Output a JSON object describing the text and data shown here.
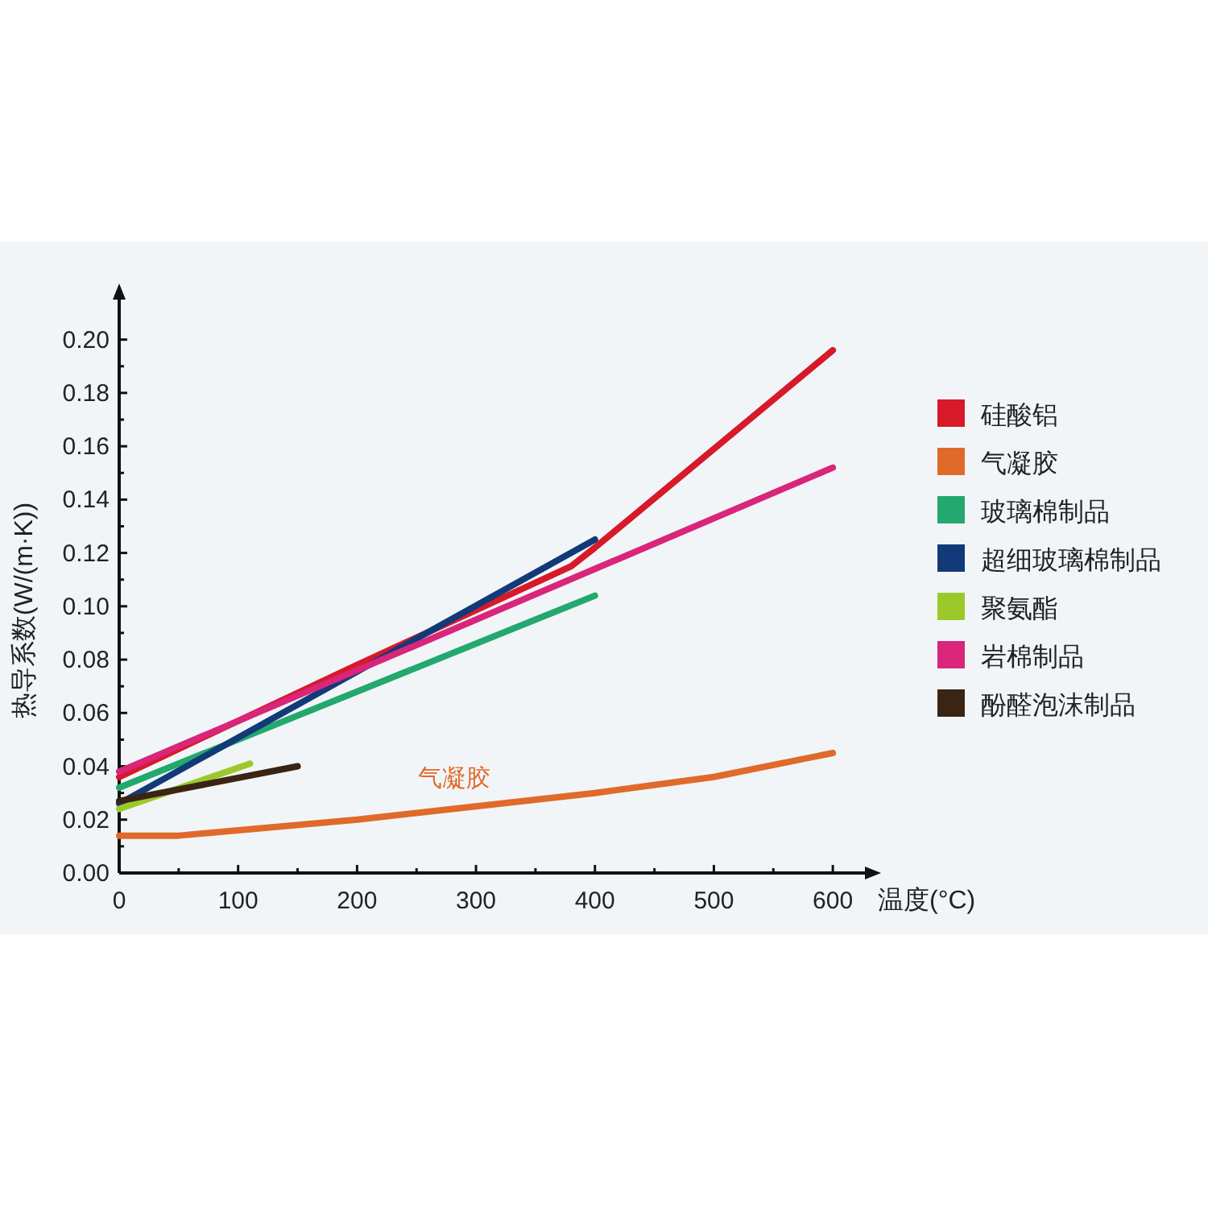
{
  "chart_data": {
    "type": "line",
    "xlabel": "温度(°C)",
    "ylabel": "热导系数(W/(m·K))",
    "xlim": [
      0,
      627
    ],
    "ylim": [
      0,
      0.215
    ],
    "xticks": [
      0,
      {
        "value": 50,
        "label": null
      },
      100,
      {
        "value": 150,
        "label": null
      },
      200,
      {
        "value": 250,
        "label": null
      },
      300,
      {
        "value": 350,
        "label": null
      },
      400,
      {
        "value": 450,
        "label": null
      },
      500,
      {
        "value": 550,
        "label": null
      },
      600
    ],
    "yticks": [
      {
        "value": 0,
        "label": "0.00"
      },
      {
        "value": 0.01,
        "label": null
      },
      {
        "value": 0.02,
        "label": "0.02"
      },
      {
        "value": 0.03,
        "label": null
      },
      {
        "value": 0.04,
        "label": "0.04"
      },
      {
        "value": 0.05,
        "label": null
      },
      {
        "value": 0.06,
        "label": "0.06"
      },
      {
        "value": 0.07,
        "label": null
      },
      {
        "value": 0.08,
        "label": "0.08"
      },
      {
        "value": 0.09,
        "label": null
      },
      {
        "value": 0.1,
        "label": "0.10"
      },
      {
        "value": 0.11,
        "label": null
      },
      {
        "value": 0.12,
        "label": "0.12"
      },
      {
        "value": 0.13,
        "label": null
      },
      {
        "value": 0.14,
        "label": "0.14"
      },
      {
        "value": 0.15,
        "label": null
      },
      {
        "value": 0.16,
        "label": "0.16"
      },
      {
        "value": 0.17,
        "label": null
      },
      {
        "value": 0.18,
        "label": "0.18"
      },
      {
        "value": 0.19,
        "label": null
      },
      {
        "value": 0.2,
        "label": "0.20"
      }
    ],
    "grid": false,
    "legend": "right",
    "marker": "none",
    "line_style": "solid",
    "annotations": [
      "气凝胶"
    ],
    "series": [
      {
        "name": "硅酸铝",
        "color": "#d7192a",
        "x": [
          0,
          200,
          380,
          400,
          600
        ],
        "values": [
          0.036,
          0.078,
          0.115,
          0.122,
          0.196
        ]
      },
      {
        "name": "气凝胶",
        "color": "#e06a2a",
        "x": [
          0,
          50,
          100,
          200,
          300,
          400,
          500,
          600
        ],
        "values": [
          0.014,
          0.014,
          0.016,
          0.02,
          0.025,
          0.03,
          0.036,
          0.045
        ]
      },
      {
        "name": "玻璃棉制品",
        "color": "#23a86e",
        "x": [
          0,
          400
        ],
        "values": [
          0.032,
          0.104
        ]
      },
      {
        "name": "超细玻璃棉制品",
        "color": "#123a78",
        "x": [
          0,
          400
        ],
        "values": [
          0.026,
          0.125
        ]
      },
      {
        "name": "聚氨酯",
        "color": "#9cc92a",
        "x": [
          0,
          110
        ],
        "values": [
          0.024,
          0.041
        ]
      },
      {
        "name": "岩棉制品",
        "color": "#d9257a",
        "x": [
          0,
          600
        ],
        "values": [
          0.038,
          0.152
        ]
      },
      {
        "name": "酚醛泡沫制品",
        "color": "#3a2414",
        "x": [
          0,
          150
        ],
        "values": [
          0.027,
          0.04
        ]
      }
    ]
  }
}
